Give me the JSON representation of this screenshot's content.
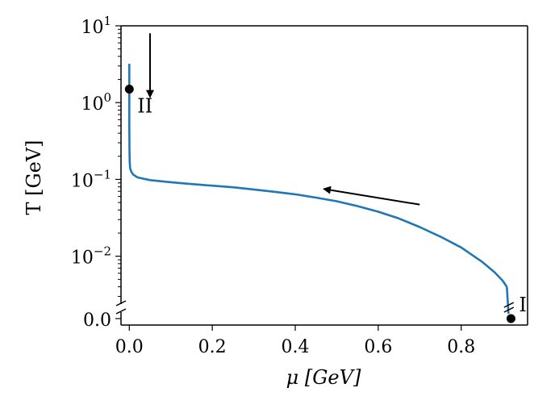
{
  "chart_data": {
    "type": "line",
    "title": "",
    "xlabel": "μ [GeV]",
    "ylabel": "T [GeV]",
    "x_ticks": [
      {
        "value": 0.0,
        "label": "0.0"
      },
      {
        "value": 0.2,
        "label": "0.2"
      },
      {
        "value": 0.4,
        "label": "0.4"
      },
      {
        "value": 0.6,
        "label": "0.6"
      },
      {
        "value": 0.8,
        "label": "0.8"
      }
    ],
    "y_ticks": [
      {
        "value": 10,
        "base": "10",
        "exp": "1"
      },
      {
        "value": 1,
        "base": "10",
        "exp": "0"
      },
      {
        "value": 0.1,
        "base": "10",
        "exp": "−1"
      },
      {
        "value": 0.01,
        "base": "10",
        "exp": "−2"
      }
    ],
    "y_zero_label": "0.0",
    "xlim": [
      -0.02,
      0.96
    ],
    "ylim": [
      0.0025,
      10
    ],
    "yscale": "log (broken axis, 0 below break)",
    "grid": false,
    "series_color": "#1f77b4",
    "series": [
      {
        "name": "",
        "points": [
          [
            0.0,
            3.2
          ],
          [
            0.0,
            1.0
          ],
          [
            0.0,
            0.5
          ],
          [
            0.0005,
            0.25
          ],
          [
            0.001,
            0.17
          ],
          [
            0.002,
            0.14
          ],
          [
            0.005,
            0.125
          ],
          [
            0.01,
            0.115
          ],
          [
            0.02,
            0.106
          ],
          [
            0.05,
            0.098
          ],
          [
            0.1,
            0.092
          ],
          [
            0.15,
            0.087
          ],
          [
            0.2,
            0.083
          ],
          [
            0.25,
            0.079
          ],
          [
            0.3,
            0.074
          ],
          [
            0.35,
            0.069
          ],
          [
            0.4,
            0.064
          ],
          [
            0.45,
            0.058
          ],
          [
            0.5,
            0.052
          ],
          [
            0.55,
            0.045
          ],
          [
            0.6,
            0.038
          ],
          [
            0.65,
            0.031
          ],
          [
            0.7,
            0.024
          ],
          [
            0.75,
            0.018
          ],
          [
            0.8,
            0.013
          ],
          [
            0.85,
            0.0085
          ],
          [
            0.88,
            0.0062
          ],
          [
            0.9,
            0.0048
          ],
          [
            0.91,
            0.004
          ]
        ]
      }
    ],
    "points": [
      {
        "label": "I",
        "x": 0.92,
        "y": 0
      },
      {
        "label": "II",
        "x": 0.0,
        "y": 1.5
      }
    ],
    "arrows": [
      {
        "from": [
          0.05,
          8.0
        ],
        "to": [
          0.05,
          1.2
        ]
      },
      {
        "from": [
          0.7,
          0.047
        ],
        "to": [
          0.47,
          0.075
        ]
      }
    ]
  }
}
